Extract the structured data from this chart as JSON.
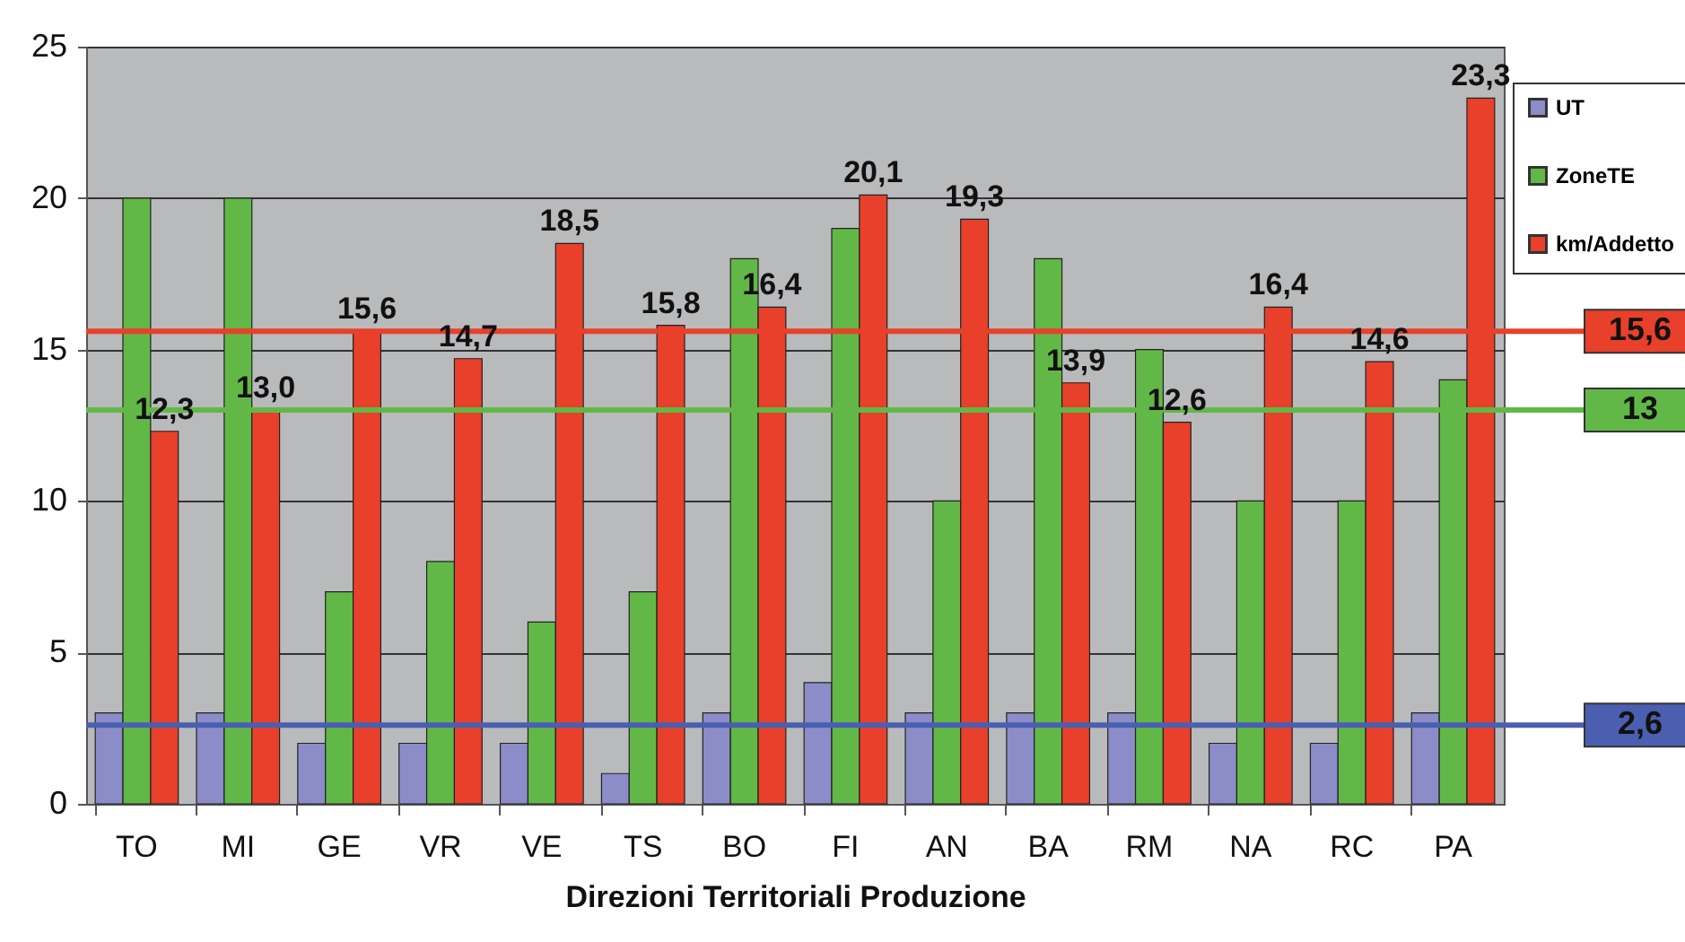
{
  "chart_data": {
    "type": "bar",
    "xlabel": "Direzioni Territoriali Produzione",
    "categories": [
      "TO",
      "MI",
      "GE",
      "VR",
      "VE",
      "TS",
      "BO",
      "FI",
      "AN",
      "BA",
      "RM",
      "NA",
      "RC",
      "PA"
    ],
    "series": [
      {
        "name": "UT",
        "color": "#8c8cc8",
        "values": [
          3,
          3,
          2,
          2,
          2,
          1,
          3,
          4,
          3,
          3,
          3,
          2,
          2,
          3
        ]
      },
      {
        "name": "ZoneTE",
        "color": "#62b846",
        "values": [
          20,
          20,
          7,
          8,
          6,
          7,
          18,
          19,
          10,
          18,
          15,
          10,
          10,
          14
        ]
      },
      {
        "name": "km/Addetto",
        "color": "#e8402a",
        "values": [
          12.3,
          13.0,
          15.6,
          14.7,
          18.5,
          15.8,
          16.4,
          20.1,
          19.3,
          13.9,
          12.6,
          16.4,
          14.6,
          23.3
        ],
        "value_labels": [
          "12,3",
          "13,0",
          "15,6",
          "14,7",
          "18,5",
          "15,8",
          "16,4",
          "20,1",
          "19,3",
          "13,9",
          "12,6",
          "16,4",
          "14,6",
          "23,3"
        ]
      }
    ],
    "ylim": [
      0,
      25
    ],
    "yticks": [
      0,
      5,
      10,
      15,
      20,
      25
    ],
    "grid": "y",
    "legend": "top right",
    "ref_lines": [
      {
        "axis": "y",
        "value": 15.6,
        "label": "15,6",
        "color": "#e8402a"
      },
      {
        "axis": "y",
        "value": 13,
        "label": "13",
        "color": "#62b846"
      },
      {
        "axis": "y",
        "value": 2.6,
        "label": "2,6",
        "color": "#4a5fb0"
      }
    ]
  }
}
